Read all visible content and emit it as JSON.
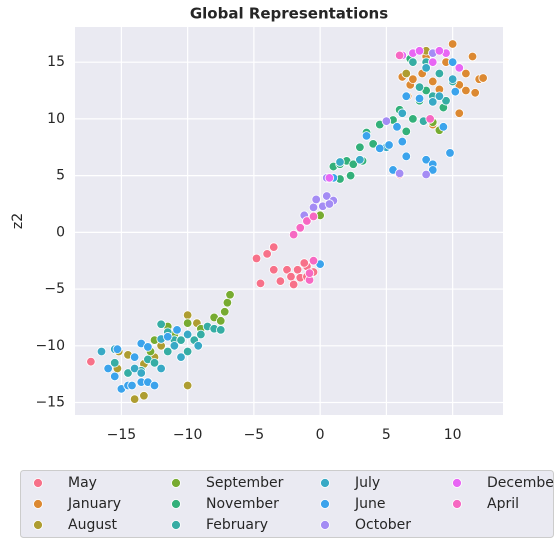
{
  "chart_data": {
    "type": "scatter",
    "title": "Global Representations",
    "y_label": "z2",
    "xlim": [
      -18.5,
      13.8
    ],
    "ylim": [
      -16.1,
      18.1
    ],
    "xticks": [
      {
        "value": -15,
        "label": "−15"
      },
      {
        "value": -10,
        "label": "−10"
      },
      {
        "value": -5,
        "label": "−5"
      },
      0,
      5,
      10
    ],
    "yticks": [
      {
        "value": -15,
        "label": "−15"
      },
      {
        "value": -10,
        "label": "−10"
      },
      {
        "value": -5,
        "label": "−5"
      },
      0,
      5,
      10,
      15
    ],
    "grid": true,
    "legend": "lower center",
    "series": [
      {
        "name": "May",
        "color": "#f77189",
        "x": [
          -17.3,
          -4.8,
          -4.5,
          -4,
          -3.5,
          -3.5,
          -3,
          -2.5,
          -2.2,
          -2,
          -1.7,
          -1.5,
          -1,
          -1,
          -0.5,
          -1.2,
          6
        ],
        "values": [
          -11.4,
          -2.3,
          -4.5,
          -1.9,
          -1.3,
          -3.3,
          -4.3,
          -3.3,
          -3.9,
          -4.6,
          -3.3,
          -4,
          -3.9,
          -3,
          -3.5,
          -2.7,
          5.1
        ]
      },
      {
        "name": "January",
        "color": "#dc8932",
        "x": [
          6.2,
          6.6,
          7.5,
          8,
          7.7,
          8.5,
          9.5,
          10,
          10.5,
          11,
          11,
          11.5,
          12,
          11.7,
          10.5,
          8.5,
          6.8,
          7,
          9,
          12.3
        ],
        "values": [
          13.7,
          12,
          16,
          15.5,
          14,
          13.3,
          15,
          16.6,
          13,
          12.5,
          14,
          15.5,
          13.5,
          12.3,
          10.5,
          9.5,
          13,
          13.5,
          12.6,
          13.6
        ]
      },
      {
        "name": "August",
        "color": "#ae9d31",
        "x": [
          -15.2,
          -14.5,
          -14,
          -13.3,
          -10,
          -10,
          -9.3,
          -13.3,
          -12.5,
          -12,
          -15.3,
          8,
          8,
          6.5
        ],
        "values": [
          -10.5,
          -10.8,
          -14.7,
          -14.4,
          -13.5,
          -7.3,
          -8,
          -11.6,
          -11,
          -10,
          -12,
          15,
          16,
          14
        ]
      },
      {
        "name": "September",
        "color": "#77ab31",
        "x": [
          -12.5,
          -11.5,
          -11,
          -9,
          -8,
          -7.5,
          -7.2,
          -7,
          -6.8,
          -10,
          -12.8,
          0,
          8.5,
          9
        ],
        "values": [
          -9.5,
          -8.3,
          -9,
          -8.5,
          -7.5,
          -7.8,
          -7,
          -6.2,
          -5.5,
          -8,
          -10.5,
          1.5,
          9.7,
          9
        ]
      },
      {
        "name": "November",
        "color": "#33b07a",
        "x": [
          1,
          1.5,
          2,
          2.5,
          2.3,
          1.5,
          3,
          3.5,
          4.5,
          4,
          5.5,
          6,
          6.5,
          7,
          7.5,
          6.8,
          8,
          9.3,
          3.2,
          4.5
        ],
        "values": [
          5.8,
          6,
          6.3,
          6,
          5,
          4.7,
          7.5,
          8.8,
          9.5,
          7.8,
          9.9,
          10.8,
          8.9,
          10,
          11.6,
          15.3,
          12.5,
          11,
          6.3,
          7.4
        ]
      },
      {
        "name": "February",
        "color": "#36ada4",
        "x": [
          -15.5,
          -14.5,
          -13.5,
          -13,
          -12,
          -12.5,
          -11.5,
          -11,
          -10.5,
          -10,
          -9.5,
          -9,
          -8.5,
          -8,
          -7.5,
          -11.5,
          5,
          7,
          8,
          9,
          10,
          7.5,
          8.5,
          9.5,
          7.8
        ],
        "values": [
          -11.5,
          -12.4,
          -12.2,
          -11.2,
          -8.1,
          -11.5,
          -10.5,
          -9.5,
          -9.5,
          -10.5,
          -9.5,
          -9,
          -8.3,
          -8.5,
          -8.6,
          -8.8,
          7.6,
          15,
          15,
          14,
          13.3,
          12.8,
          12,
          11.6,
          9.8
        ]
      },
      {
        "name": "July",
        "color": "#38a9c5",
        "x": [
          -16.5,
          -15.5,
          -14,
          -13.5,
          -12,
          -13,
          -10.5,
          -11,
          -10,
          -9.2,
          -12,
          1.5,
          3,
          5,
          6.2,
          8.5,
          9,
          10,
          8
        ],
        "values": [
          -10.5,
          -10.3,
          -12,
          -12.4,
          -12,
          -13.2,
          -11,
          -10,
          -9,
          -10,
          -9.4,
          6.2,
          6.4,
          7.5,
          10.5,
          11.5,
          12,
          13.5,
          14.5
        ]
      },
      {
        "name": "June",
        "color": "#3ba3ec",
        "x": [
          -16,
          -15.5,
          -15,
          -14.5,
          -14.2,
          -13.5,
          -13,
          -12.5,
          -15.3,
          -14,
          -13.5,
          -13,
          -11.5,
          -10.8,
          0,
          1,
          3.5,
          4.5,
          5.2,
          5.8,
          6.5,
          6.2,
          5.5,
          8,
          8.5,
          9.8,
          8.5,
          10,
          9.3,
          6.5,
          7.5,
          10.2
        ],
        "values": [
          -12,
          -12.7,
          -13.8,
          -13.5,
          -13.5,
          -13.2,
          -13.2,
          -13.5,
          -10.3,
          -11,
          -9.8,
          -10.1,
          -9.2,
          -8.6,
          -2.8,
          4.8,
          8.5,
          7.4,
          7.7,
          9.3,
          6.7,
          8,
          5.5,
          6.4,
          6,
          7,
          5.5,
          15,
          9.3,
          12,
          11.8,
          12.4
        ]
      },
      {
        "name": "October",
        "color": "#a48cf4",
        "x": [
          -1.2,
          -0.5,
          -0.3,
          0.2,
          0.5,
          1,
          0.7,
          0.5,
          6,
          8,
          8.5,
          5
        ],
        "values": [
          1.5,
          2.2,
          2.9,
          2.3,
          3.2,
          2.8,
          2.5,
          4.8,
          5.2,
          5.1,
          15.8,
          9.8
        ]
      },
      {
        "name": "December",
        "color": "#e866f4",
        "x": [
          0.7,
          6.2,
          7,
          7.5,
          9.5,
          10.5,
          8.5,
          9
        ],
        "values": [
          4.8,
          15.6,
          15.8,
          16,
          15.8,
          14.5,
          15,
          16
        ]
      },
      {
        "name": "April",
        "color": "#f668c2",
        "x": [
          -2,
          -1.5,
          -1,
          -0.5,
          -0.8,
          -0.8,
          -0.5,
          6,
          8.3
        ],
        "values": [
          -0.2,
          0.4,
          1,
          1.4,
          -4.2,
          -3.6,
          -2.5,
          15.6,
          10
        ]
      }
    ]
  }
}
